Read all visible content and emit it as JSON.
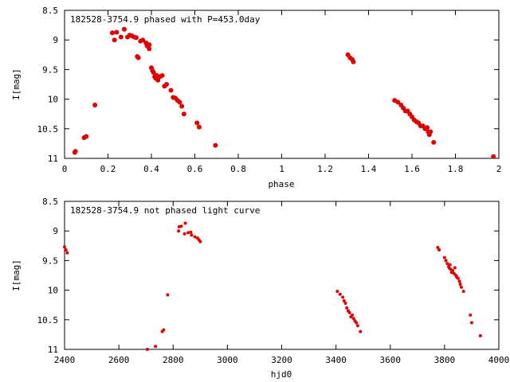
{
  "colors": {
    "marker": "#e00000",
    "axes": "#000000"
  },
  "chart_data": [
    {
      "type": "scatter",
      "title": "182528-3754.9 phased with P=453.0day",
      "xlabel": "phase",
      "ylabel": "I[mag]",
      "xlim": [
        0,
        2
      ],
      "ylim": [
        8.5,
        11
      ],
      "y_inverted": true,
      "grid": false,
      "xticks": [
        0,
        0.2,
        0.4,
        0.6,
        0.8,
        1,
        1.2,
        1.4,
        1.6,
        1.8,
        2
      ],
      "xtick_labels": [
        "0",
        "0.2",
        "0.4",
        "0.6",
        "0.8",
        "1",
        "1.2",
        "1.4",
        "1.6",
        "1.8",
        "2"
      ],
      "yticks": [
        8.5,
        9,
        9.5,
        10,
        10.5,
        11
      ],
      "ytick_labels": [
        "8.5",
        "9",
        "9.5",
        "10",
        "10.5",
        "11"
      ],
      "x": [
        0.047,
        0.05,
        0.09,
        0.1,
        0.14,
        0.22,
        0.23,
        0.24,
        0.26,
        0.275,
        0.29,
        0.3,
        0.31,
        0.32,
        0.33,
        0.335,
        0.34,
        0.35,
        0.36,
        0.375,
        0.38,
        0.39,
        0.39,
        0.4,
        0.405,
        0.41,
        0.415,
        0.42,
        0.425,
        0.43,
        0.44,
        0.45,
        0.46,
        0.47,
        0.49,
        0.5,
        0.51,
        0.52,
        0.53,
        0.54,
        0.55,
        0.61,
        0.62,
        0.695,
        1.305,
        1.315,
        1.325,
        1.33,
        1.52,
        1.535,
        1.55,
        1.56,
        1.57,
        1.58,
        1.59,
        1.6,
        1.61,
        1.62,
        1.63,
        1.64,
        1.65,
        1.66,
        1.67,
        1.675,
        1.68,
        1.685,
        1.7,
        1.975
      ],
      "y": [
        10.9,
        10.88,
        10.65,
        10.63,
        10.1,
        8.88,
        9.0,
        8.87,
        8.95,
        8.82,
        8.95,
        8.92,
        8.93,
        8.95,
        8.96,
        9.28,
        9.3,
        9.02,
        9.0,
        9.05,
        9.1,
        9.08,
        9.15,
        9.47,
        9.52,
        9.55,
        9.62,
        9.65,
        9.6,
        9.68,
        9.62,
        9.6,
        9.78,
        9.75,
        9.85,
        9.97,
        9.98,
        10.02,
        10.05,
        10.12,
        10.25,
        10.4,
        10.47,
        10.78,
        9.25,
        9.3,
        9.33,
        9.37,
        10.02,
        10.05,
        10.1,
        10.15,
        10.2,
        10.2,
        10.25,
        10.3,
        10.35,
        10.38,
        10.4,
        10.45,
        10.45,
        10.5,
        10.48,
        10.55,
        10.6,
        10.55,
        10.73,
        10.97
      ]
    },
    {
      "type": "scatter",
      "title": "182528-3754.9 not phased light curve",
      "xlabel": "hjd0",
      "ylabel": "I[mag]",
      "xlim": [
        2400,
        4000
      ],
      "ylim": [
        8.5,
        11
      ],
      "y_inverted": true,
      "grid": false,
      "xticks": [
        2400,
        2600,
        2800,
        3000,
        3200,
        3400,
        3600,
        3800,
        4000
      ],
      "xtick_labels": [
        "2400",
        "2600",
        "2800",
        "3000",
        "3200",
        "3400",
        "3600",
        "3800",
        "4000"
      ],
      "yticks": [
        8.5,
        9,
        9.5,
        10,
        10.5,
        11
      ],
      "ytick_labels": [
        "8.5",
        "9",
        "9.5",
        "10",
        "10.5",
        "11"
      ],
      "x": [
        2400,
        2405,
        2410,
        2705,
        2735,
        2760,
        2765,
        2780,
        2820,
        2822,
        2830,
        2842,
        2845,
        2855,
        2865,
        2868,
        2880,
        2890,
        2895,
        2900,
        3405,
        3415,
        3425,
        3430,
        3435,
        3440,
        3445,
        3450,
        3455,
        3460,
        3465,
        3470,
        3475,
        3480,
        3490,
        3775,
        3780,
        3800,
        3805,
        3810,
        3815,
        3818,
        3820,
        3823,
        3826,
        3830,
        3835,
        3838,
        3842,
        3845,
        3850,
        3855,
        3858,
        3862,
        3870,
        3895,
        3900,
        3932
      ],
      "y": [
        9.27,
        9.32,
        9.37,
        11.0,
        10.95,
        10.7,
        10.67,
        10.08,
        9.0,
        8.93,
        8.92,
        9.05,
        8.87,
        9.03,
        9.02,
        9.07,
        9.1,
        9.12,
        9.15,
        9.18,
        10.02,
        10.07,
        10.12,
        10.18,
        10.22,
        10.3,
        10.35,
        10.38,
        10.45,
        10.42,
        10.48,
        10.52,
        10.55,
        10.6,
        10.7,
        9.28,
        9.32,
        9.45,
        9.5,
        9.55,
        9.6,
        9.63,
        9.57,
        9.65,
        9.7,
        9.67,
        9.72,
        9.62,
        9.75,
        9.78,
        9.8,
        9.85,
        9.9,
        9.95,
        10.02,
        10.42,
        10.55,
        10.77
      ]
    }
  ]
}
